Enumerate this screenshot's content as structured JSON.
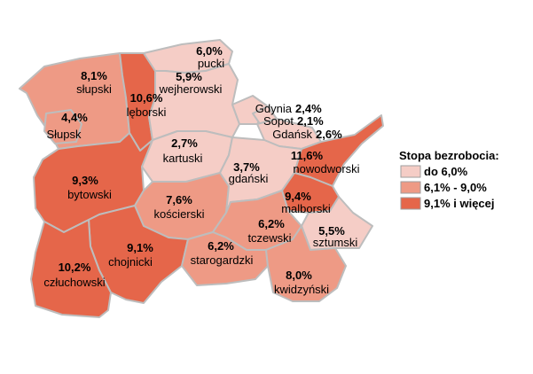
{
  "legend": {
    "title": "Stopa bezrobocia:",
    "items": [
      {
        "label": "do 6,0%",
        "color": "#f5cdc6"
      },
      {
        "label": "6,1% - 9,0%",
        "color": "#ee9a85"
      },
      {
        "label": "9,1% i więcej",
        "color": "#e5664a"
      }
    ]
  },
  "regions": [
    {
      "id": "slupski",
      "name": "słupski",
      "value": "8,1%",
      "class": 1
    },
    {
      "id": "slupsk",
      "name": "Słupsk",
      "value": "4,4%",
      "class": 1
    },
    {
      "id": "leborski",
      "name": "lęborski",
      "value": "10,6%",
      "class": 2
    },
    {
      "id": "pucki",
      "name": "pucki",
      "value": "6,0%",
      "class": 0
    },
    {
      "id": "wejherowski",
      "name": "wejherowski",
      "value": "5,9%",
      "class": 0
    },
    {
      "id": "gdynia",
      "name": "Gdynia",
      "value": "2,4%",
      "class": 0
    },
    {
      "id": "sopot",
      "name": "Sopot",
      "value": "2,1%",
      "class": 0
    },
    {
      "id": "gdansk",
      "name": "Gdańsk",
      "value": "2,6%",
      "class": 0
    },
    {
      "id": "kartuski",
      "name": "kartuski",
      "value": "2,7%",
      "class": 0
    },
    {
      "id": "bytowski",
      "name": "bytowski",
      "value": "9,3%",
      "class": 2
    },
    {
      "id": "koscierski",
      "name": "kościerski",
      "value": "7,6%",
      "class": 1
    },
    {
      "id": "gdanski",
      "name": "gdański",
      "value": "3,7%",
      "class": 0
    },
    {
      "id": "nowodworski",
      "name": "nowodworski",
      "value": "11,6%",
      "class": 2
    },
    {
      "id": "malborski",
      "name": "malborski",
      "value": "9,4%",
      "class": 2
    },
    {
      "id": "tczewski",
      "name": "tczewski",
      "value": "6,2%",
      "class": 1
    },
    {
      "id": "sztumski",
      "name": "sztumski",
      "value": "5,5%",
      "class": 0
    },
    {
      "id": "chojnicki",
      "name": "chojnicki",
      "value": "9,1%",
      "class": 2
    },
    {
      "id": "starogardzki",
      "name": "starogardzki",
      "value": "6,2%",
      "class": 1
    },
    {
      "id": "czluchowski",
      "name": "człuchowski",
      "value": "10,2%",
      "class": 2
    },
    {
      "id": "kwidzynski",
      "name": "kwidzyński",
      "value": "8,0%",
      "class": 1
    }
  ]
}
